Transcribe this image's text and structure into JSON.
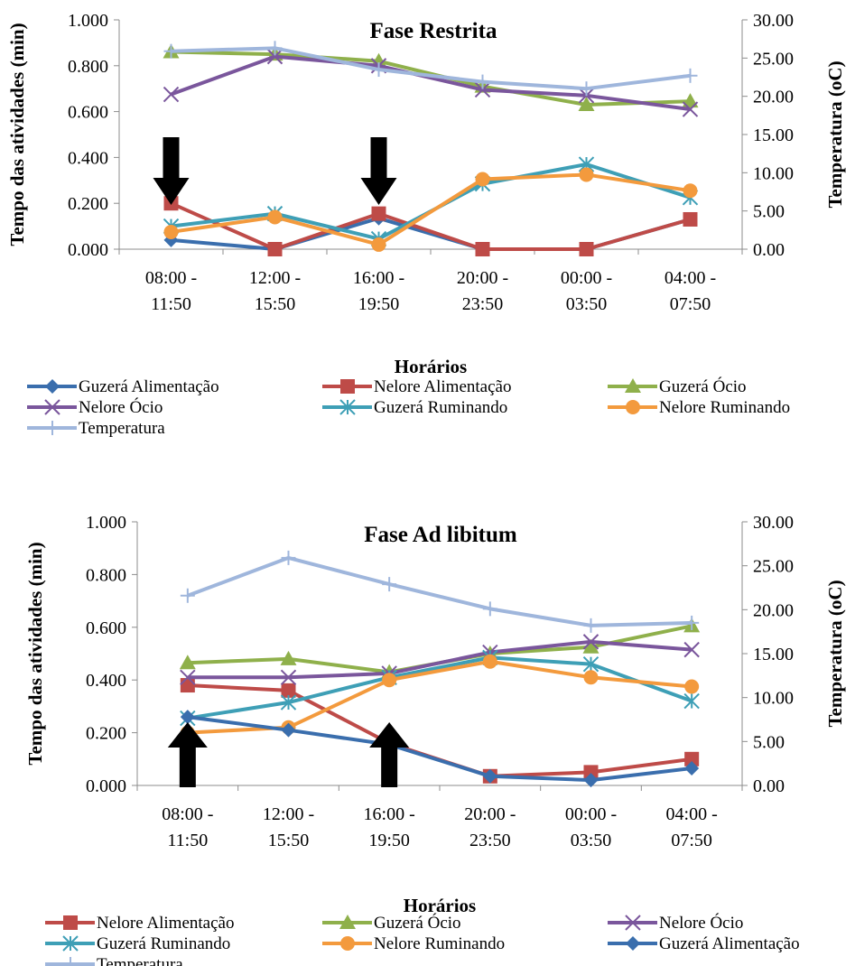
{
  "chart_data": [
    {
      "type": "line",
      "title": "Fase Restrita",
      "xlabel": "Horários",
      "ylabel": "Tempo das atividades (min)",
      "y2label": "Temperatura (oC)",
      "categories": [
        [
          "08:00 -",
          "11:50"
        ],
        [
          "12:00 -",
          "15:50"
        ],
        [
          "16:00 -",
          "19:50"
        ],
        [
          "20:00 -",
          "23:50"
        ],
        [
          "00:00 -",
          "03:50"
        ],
        [
          "04:00 -",
          "07:50"
        ]
      ],
      "ylim": [
        0,
        1.0
      ],
      "yticks": [
        "0.000",
        "0.200",
        "0.400",
        "0.600",
        "0.800",
        "1.000"
      ],
      "y2lim": [
        0,
        30
      ],
      "y2ticks": [
        "0.00",
        "5.00",
        "10.00",
        "15.00",
        "20.00",
        "25.00",
        "30.00"
      ],
      "arrows": [
        {
          "category": 0,
          "direction": "down"
        },
        {
          "category": 2,
          "direction": "down"
        }
      ],
      "series": [
        {
          "name": "Guzerá Alimentação",
          "color": "#3a6ead",
          "marker": "diamond",
          "axis": "left",
          "values": [
            0.04,
            0.0,
            0.135,
            0.0,
            0.0,
            0.13
          ]
        },
        {
          "name": "Nelore Alimentação",
          "color": "#be4b48",
          "marker": "square",
          "axis": "left",
          "values": [
            0.2,
            0.0,
            0.155,
            0.0,
            0.0,
            0.13
          ]
        },
        {
          "name": "Guzerá Ócio",
          "color": "#8fb04b",
          "marker": "triangle",
          "axis": "left",
          "values": [
            0.86,
            0.85,
            0.82,
            0.71,
            0.63,
            0.645
          ]
        },
        {
          "name": "Nelore Ócio",
          "color": "#7a569c",
          "marker": "x",
          "axis": "left",
          "values": [
            0.675,
            0.84,
            0.8,
            0.695,
            0.67,
            0.61
          ]
        },
        {
          "name": "Guzerá Ruminando",
          "color": "#3e9fb6",
          "marker": "asterisk",
          "axis": "left",
          "values": [
            0.1,
            0.155,
            0.045,
            0.285,
            0.37,
            0.225
          ]
        },
        {
          "name": "Nelore Ruminando",
          "color": "#f39a3d",
          "marker": "circle",
          "axis": "left",
          "values": [
            0.075,
            0.14,
            0.02,
            0.305,
            0.325,
            0.255
          ]
        },
        {
          "name": "Temperatura",
          "color": "#9fb6dc",
          "marker": "plus",
          "axis": "right",
          "values": [
            25.9,
            26.3,
            23.5,
            21.9,
            21.0,
            22.7
          ]
        }
      ]
    },
    {
      "type": "line",
      "title": "Fase Ad libitum",
      "xlabel": "Horários",
      "ylabel": "Tempo das atividades (min)",
      "y2label": "Temperatura (oC)",
      "categories": [
        [
          "08:00 -",
          "11:50"
        ],
        [
          "12:00 -",
          "15:50"
        ],
        [
          "16:00 -",
          "19:50"
        ],
        [
          "20:00 -",
          "23:50"
        ],
        [
          "00:00 -",
          "03:50"
        ],
        [
          "04:00 -",
          "07:50"
        ]
      ],
      "ylim": [
        0,
        1.0
      ],
      "yticks": [
        "0.000",
        "0.200",
        "0.400",
        "0.600",
        "0.800",
        "1.000"
      ],
      "y2lim": [
        0,
        30
      ],
      "y2ticks": [
        "0.00",
        "5.00",
        "10.00",
        "15.00",
        "20.00",
        "25.00",
        "30.00"
      ],
      "arrows": [
        {
          "category": 0,
          "direction": "up"
        },
        {
          "category": 2,
          "direction": "up"
        }
      ],
      "series": [
        {
          "name": "Nelore Alimentação",
          "color": "#be4b48",
          "marker": "square",
          "axis": "left",
          "values": [
            0.38,
            0.36,
            0.16,
            0.035,
            0.05,
            0.1
          ]
        },
        {
          "name": "Guzerá Ócio",
          "color": "#8fb04b",
          "marker": "triangle",
          "axis": "left",
          "values": [
            0.465,
            0.48,
            0.43,
            0.5,
            0.525,
            0.605
          ]
        },
        {
          "name": "Nelore Ócio",
          "color": "#7a569c",
          "marker": "x",
          "axis": "left",
          "values": [
            0.41,
            0.41,
            0.425,
            0.505,
            0.545,
            0.515
          ]
        },
        {
          "name": "Guzerá Ruminando",
          "color": "#3e9fb6",
          "marker": "asterisk",
          "axis": "left",
          "values": [
            0.255,
            0.315,
            0.41,
            0.485,
            0.46,
            0.32
          ]
        },
        {
          "name": "Nelore Ruminando",
          "color": "#f39a3d",
          "marker": "circle",
          "axis": "left",
          "values": [
            0.2,
            0.22,
            0.4,
            0.47,
            0.41,
            0.375
          ]
        },
        {
          "name": "Guzerá Alimentação",
          "color": "#3a6ead",
          "marker": "diamond",
          "axis": "left",
          "values": [
            0.26,
            0.21,
            0.155,
            0.035,
            0.02,
            0.065
          ]
        },
        {
          "name": "Temperatura",
          "color": "#9fb6dc",
          "marker": "plus",
          "axis": "right",
          "values": [
            21.6,
            25.9,
            22.9,
            20.1,
            18.2,
            18.5
          ]
        }
      ]
    }
  ]
}
